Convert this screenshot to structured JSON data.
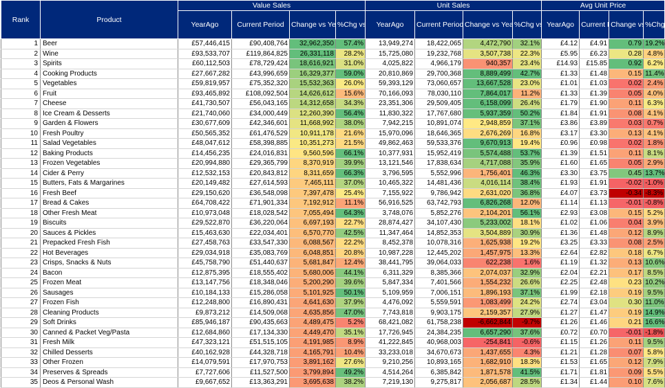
{
  "headers": {
    "rank": "Rank",
    "product": "Product",
    "groups": [
      "Value Sales",
      "Unit Sales",
      "Avg Unit Price"
    ],
    "sub": [
      "YearAgo",
      "Current Period",
      "Change vs Year Ago",
      "%Chg vs YA",
      "YearAgo",
      "Current Period",
      "Change vs Year Ago",
      "%Chg vs YA",
      "YearAgo",
      "Current Period",
      "Change vs Year Ago",
      "%Chg vs YA"
    ]
  },
  "rows": [
    [
      "1",
      "Beer",
      "£57,446,415",
      "£90,408,764",
      "32,962,350",
      "57.4%",
      "13,949,274",
      "18,422,065",
      "4,472,790",
      "32.1%",
      "£4.12",
      "£4.91",
      "0.79",
      "19.2%"
    ],
    [
      "2",
      "Wine",
      "£93,533,707",
      "£119,864,825",
      "26,331,118",
      "28.2%",
      "15,725,080",
      "19,232,768",
      "3,507,738",
      "22.3%",
      "£5.95",
      "£6.23",
      "0.28",
      "4.8%"
    ],
    [
      "3",
      "Spirits",
      "£60,112,503",
      "£78,729,424",
      "18,616,921",
      "31.0%",
      "4,025,822",
      "4,966,179",
      "940,357",
      "23.4%",
      "£14.93",
      "£15.85",
      "0.92",
      "6.2%"
    ],
    [
      "4",
      "Cooking Products",
      "£27,667,282",
      "£43,996,659",
      "16,329,377",
      "59.0%",
      "20,810,869",
      "29,700,368",
      "8,889,499",
      "42.7%",
      "£1.33",
      "£1.48",
      "0.15",
      "11.4%"
    ],
    [
      "5",
      "Vegetables",
      "£59,819,957",
      "£75,352,320",
      "15,532,363",
      "26.0%",
      "59,393,129",
      "73,060,657",
      "13,667,528",
      "23.0%",
      "£1.01",
      "£1.03",
      "0.02",
      "2.4%"
    ],
    [
      "6",
      "Fruit",
      "£93,465,892",
      "£108,092,504",
      "14,626,612",
      "15.6%",
      "70,166,093",
      "78,030,110",
      "7,864,017",
      "11.2%",
      "£1.33",
      "£1.39",
      "0.05",
      "4.0%"
    ],
    [
      "7",
      "Cheese",
      "£41,730,507",
      "£56,043,165",
      "14,312,658",
      "34.3%",
      "23,351,306",
      "29,509,405",
      "6,158,099",
      "26.4%",
      "£1.79",
      "£1.90",
      "0.11",
      "6.3%"
    ],
    [
      "8",
      "Ice Cream & Desserts",
      "£21,740,060",
      "£34,000,449",
      "12,260,390",
      "56.4%",
      "11,830,322",
      "17,767,680",
      "5,937,359",
      "50.2%",
      "£1.84",
      "£1.91",
      "0.08",
      "4.1%"
    ],
    [
      "9",
      "Garden & Flowers",
      "£30,677,609",
      "£42,346,601",
      "11,668,992",
      "38.0%",
      "7,942,215",
      "10,891,074",
      "2,948,859",
      "37.1%",
      "£3.86",
      "£3.89",
      "0.03",
      "0.7%"
    ],
    [
      "10",
      "Fresh Poultry",
      "£50,565,352",
      "£61,476,529",
      "10,911,178",
      "21.6%",
      "15,970,096",
      "18,646,365",
      "2,676,269",
      "16.8%",
      "£3.17",
      "£3.30",
      "0.13",
      "4.1%"
    ],
    [
      "11",
      "Salad Vegetables",
      "£48,047,612",
      "£58,398,885",
      "10,351,273",
      "21.5%",
      "49,862,463",
      "59,533,376",
      "9,670,913",
      "19.4%",
      "£0.96",
      "£0.98",
      "0.02",
      "1.8%"
    ],
    [
      "12",
      "Baking Products",
      "£14,456,235",
      "£24,016,831",
      "9,560,596",
      "66.1%",
      "10,377,931",
      "15,952,419",
      "5,574,488",
      "53.7%",
      "£1.39",
      "£1.51",
      "0.11",
      "8.1%"
    ],
    [
      "13",
      "Frozen Vegetables",
      "£20,994,880",
      "£29,365,799",
      "8,370,919",
      "39.9%",
      "13,121,546",
      "17,838,634",
      "4,717,088",
      "35.9%",
      "£1.60",
      "£1.65",
      "0.05",
      "2.9%"
    ],
    [
      "14",
      "Cider & Perry",
      "£12,532,153",
      "£20,843,812",
      "8,311,659",
      "66.3%",
      "3,796,595",
      "5,552,996",
      "1,756,401",
      "46.3%",
      "£3.30",
      "£3.75",
      "0.45",
      "13.7%"
    ],
    [
      "15",
      "Butters, Fats & Margarines",
      "£20,149,482",
      "£27,614,593",
      "7,465,111",
      "37.0%",
      "10,465,322",
      "14,481,436",
      "4,016,114",
      "38.4%",
      "£1.93",
      "£1.91",
      "-0.02",
      "-1.0%"
    ],
    [
      "16",
      "Fresh Beef",
      "£29,150,620",
      "£36,548,098",
      "7,397,478",
      "25.4%",
      "7,155,922",
      "9,786,942",
      "2,631,020",
      "36.8%",
      "£4.07",
      "£3.73",
      "-0.34",
      "-8.3%"
    ],
    [
      "17",
      "Bread & Cakes",
      "£64,708,422",
      "£71,901,334",
      "7,192,912",
      "11.1%",
      "56,916,525",
      "63,742,793",
      "6,826,268",
      "12.0%",
      "£1.14",
      "£1.13",
      "-0.01",
      "-0.8%"
    ],
    [
      "18",
      "Other Fresh Meat",
      "£10,973,048",
      "£18,028,542",
      "7,055,494",
      "64.3%",
      "3,748,076",
      "5,852,276",
      "2,104,201",
      "56.1%",
      "£2.93",
      "£3.08",
      "0.15",
      "5.2%"
    ],
    [
      "19",
      "Biscuits",
      "£29,522,870",
      "£36,220,064",
      "6,697,193",
      "22.7%",
      "28,874,427",
      "34,107,430",
      "5,233,002",
      "18.1%",
      "£1.02",
      "£1.06",
      "0.04",
      "3.9%"
    ],
    [
      "20",
      "Sauces & Pickles",
      "£15,463,630",
      "£22,034,401",
      "6,570,770",
      "42.5%",
      "11,347,464",
      "14,852,353",
      "3,504,889",
      "30.9%",
      "£1.36",
      "£1.48",
      "0.12",
      "8.9%"
    ],
    [
      "21",
      "Prepacked Fresh Fish",
      "£27,458,763",
      "£33,547,330",
      "6,088,567",
      "22.2%",
      "8,452,378",
      "10,078,316",
      "1,625,938",
      "19.2%",
      "£3.25",
      "£3.33",
      "0.08",
      "2.5%"
    ],
    [
      "22",
      "Hot Beverages",
      "£29,034,918",
      "£35,083,769",
      "6,048,851",
      "20.8%",
      "10,987,228",
      "12,445,202",
      "1,457,975",
      "13.3%",
      "£2.64",
      "£2.82",
      "0.18",
      "6.7%"
    ],
    [
      "23",
      "Crisps, Snacks & Nuts",
      "£45,758,790",
      "£51,440,637",
      "5,681,847",
      "12.4%",
      "38,441,795",
      "39,064,033",
      "622,238",
      "1.6%",
      "£1.19",
      "£1.32",
      "0.13",
      "10.6%"
    ],
    [
      "24",
      "Bacon",
      "£12,875,395",
      "£18,555,402",
      "5,680,006",
      "44.1%",
      "6,311,329",
      "8,385,366",
      "2,074,037",
      "32.9%",
      "£2.04",
      "£2.21",
      "0.17",
      "8.5%"
    ],
    [
      "25",
      "Frozen Meat",
      "£13,147,756",
      "£18,348,046",
      "5,200,290",
      "39.6%",
      "5,847,334",
      "7,401,566",
      "1,554,232",
      "26.6%",
      "£2.25",
      "£2.48",
      "0.23",
      "10.2%"
    ],
    [
      "26",
      "Sausages",
      "£10,184,133",
      "£15,286,058",
      "5,101,925",
      "50.1%",
      "5,109,959",
      "7,006,151",
      "1,896,193",
      "37.1%",
      "£1.99",
      "£2.18",
      "0.19",
      "9.5%"
    ],
    [
      "27",
      "Frozen Fish",
      "£12,248,800",
      "£16,890,431",
      "4,641,630",
      "37.9%",
      "4,476,092",
      "5,559,591",
      "1,083,499",
      "24.2%",
      "£2.74",
      "£3.04",
      "0.30",
      "11.0%"
    ],
    [
      "28",
      "Cleaning Products",
      "£9,873,212",
      "£14,509,068",
      "4,635,856",
      "47.0%",
      "7,743,818",
      "9,903,175",
      "2,159,357",
      "27.9%",
      "£1.27",
      "£1.47",
      "0.19",
      "14.9%"
    ],
    [
      "29",
      "Soft Drinks",
      "£85,946,187",
      "£90,435,663",
      "4,489,475",
      "5.2%",
      "68,421,082",
      "61,758,238",
      "-6,662,844",
      "-9.7%",
      "£1.26",
      "£1.46",
      "0.21",
      "16.6%"
    ],
    [
      "30",
      "Canned & Packet Veg/Pasta",
      "£12,684,860",
      "£17,134,330",
      "4,449,470",
      "35.1%",
      "17,726,945",
      "24,384,235",
      "6,657,290",
      "37.6%",
      "£0.72",
      "£0.70",
      "-0.01",
      "-1.8%"
    ],
    [
      "31",
      "Fresh Milk",
      "£47,323,121",
      "£51,515,105",
      "4,191,985",
      "8.9%",
      "41,222,845",
      "40,968,003",
      "-254,841",
      "-0.6%",
      "£1.15",
      "£1.26",
      "0.11",
      "9.5%"
    ],
    [
      "32",
      "Chilled Desserts",
      "£40,162,928",
      "£44,328,718",
      "4,165,791",
      "10.4%",
      "33,233,018",
      "34,670,673",
      "1,437,655",
      "4.3%",
      "£1.21",
      "£1.28",
      "0.07",
      "5.8%"
    ],
    [
      "33",
      "Other Frozen",
      "£14,079,591",
      "£17,970,753",
      "3,891,162",
      "27.6%",
      "9,210,256",
      "10,893,165",
      "1,682,910",
      "18.3%",
      "£1.53",
      "£1.65",
      "0.12",
      "7.9%"
    ],
    [
      "34",
      "Preserves & Spreads",
      "£7,727,606",
      "£11,527,500",
      "3,799,894",
      "49.2%",
      "4,514,264",
      "6,385,842",
      "1,871,578",
      "41.5%",
      "£1.71",
      "£1.81",
      "0.09",
      "5.5%"
    ],
    [
      "35",
      "Deos & Personal Wash",
      "£9,667,652",
      "£13,363,291",
      "3,695,638",
      "38.2%",
      "7,219,130",
      "9,275,817",
      "2,056,687",
      "28.5%",
      "£1.34",
      "£1.44",
      "0.10",
      "7.6%"
    ]
  ],
  "colors": {
    "header_bg": "#00287a",
    "scale_green": "#63be7b",
    "scale_yellow": "#ffeb84",
    "scale_red": "#f8696b",
    "scale_dark_red": "#c00000"
  }
}
